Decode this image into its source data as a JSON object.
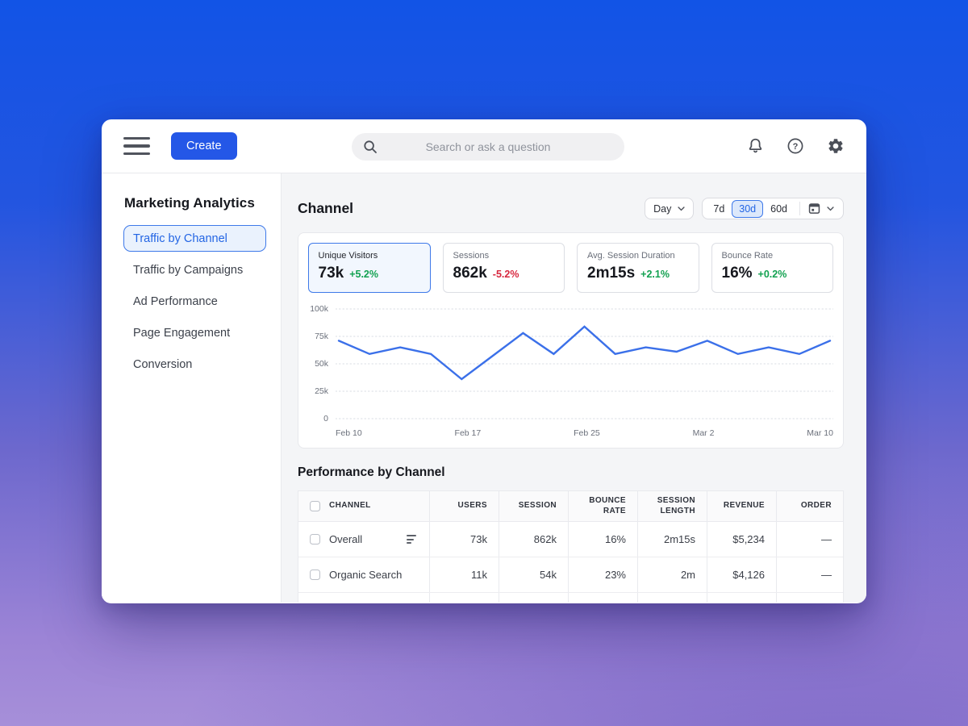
{
  "topbar": {
    "create_label": "Create",
    "search_placeholder": "Search or ask a question"
  },
  "sidebar": {
    "title": "Marketing Analytics",
    "items": [
      {
        "label": "Traffic by Channel",
        "active": true
      },
      {
        "label": "Traffic by Campaigns",
        "active": false
      },
      {
        "label": "Ad Performance",
        "active": false
      },
      {
        "label": "Page Engagement",
        "active": false
      },
      {
        "label": "Conversion",
        "active": false
      }
    ]
  },
  "main": {
    "title": "Channel",
    "controls": {
      "granularity": "Day",
      "ranges": [
        "7d",
        "30d",
        "60d"
      ],
      "active_range": "30d"
    },
    "stats": [
      {
        "label": "Unique Visitors",
        "value": "73k",
        "delta": "+5.2%",
        "trend": "up",
        "active": true
      },
      {
        "label": "Sessions",
        "value": "862k",
        "delta": "-5.2%",
        "trend": "down",
        "active": false
      },
      {
        "label": "Avg. Session Duration",
        "value": "2m15s",
        "delta": "+2.1%",
        "trend": "up",
        "active": false
      },
      {
        "label": "Bounce Rate",
        "value": "16%",
        "delta": "+0.2%",
        "trend": "up",
        "active": false
      }
    ]
  },
  "chart_data": {
    "type": "line",
    "title": "Unique Visitors over time",
    "x_labels": [
      "Feb 10",
      "Feb 17",
      "Feb 25",
      "Mar 2",
      "Mar 10"
    ],
    "ytick_labels": [
      "100k",
      "75k",
      "50k",
      "25k",
      "0"
    ],
    "ylim": [
      0,
      100000
    ],
    "values": [
      71000,
      59000,
      65000,
      59000,
      36000,
      57000,
      78000,
      59000,
      84000,
      59000,
      65000,
      61000,
      71000,
      59000,
      65000,
      59000,
      71000
    ],
    "grid": "dotted-horizontal",
    "legend": "none"
  },
  "table": {
    "title": "Performance by Channel",
    "columns": [
      "Channel",
      "Users",
      "Session",
      "Bounce Rate",
      "Session Length",
      "Revenue",
      "Order"
    ],
    "rows": [
      {
        "channel": "Overall",
        "users": "73k",
        "session": "862k",
        "bounce_rate": "16%",
        "session_length": "2m15s",
        "revenue": "$5,234",
        "order": "—"
      },
      {
        "channel": "Organic Search",
        "users": "11k",
        "session": "54k",
        "bounce_rate": "23%",
        "session_length": "2m",
        "revenue": "$4,126",
        "order": "—"
      },
      {
        "channel": "",
        "users": "",
        "session": "",
        "bounce_rate": "",
        "session_length": "",
        "revenue": "",
        "order": ""
      }
    ]
  },
  "colors": {
    "accent_blue": "#2457e7",
    "accent_text": "#2365e4",
    "active_border": "#3e79e9",
    "active_bg": "#eaf2fd",
    "positive_green": "#12a150",
    "negative_red": "#d7283f",
    "chart_line": "#3b70e9",
    "grid_line": "#d9dce3"
  }
}
